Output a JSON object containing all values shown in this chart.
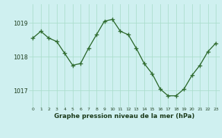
{
  "x": [
    0,
    1,
    2,
    3,
    4,
    5,
    6,
    7,
    8,
    9,
    10,
    11,
    12,
    13,
    14,
    15,
    16,
    17,
    18,
    19,
    20,
    21,
    22,
    23
  ],
  "y": [
    1018.55,
    1018.75,
    1018.55,
    1018.45,
    1018.1,
    1017.75,
    1017.8,
    1018.25,
    1018.65,
    1019.05,
    1019.1,
    1018.75,
    1018.65,
    1018.25,
    1017.8,
    1017.5,
    1017.05,
    1016.85,
    1016.85,
    1017.05,
    1017.45,
    1017.75,
    1018.15,
    1018.4
  ],
  "line_color": "#2d6a2d",
  "marker": "+",
  "marker_color": "#2d6a2d",
  "bg_color": "#cff0f0",
  "grid_color": "#aaddcc",
  "xlabel": "Graphe pression niveau de la mer (hPa)",
  "xlabel_color": "#1a3a1a",
  "tick_color": "#1a3a1a",
  "yticks": [
    1017,
    1018,
    1019
  ],
  "ylim": [
    1016.5,
    1019.55
  ],
  "xlim": [
    -0.5,
    23.5
  ],
  "linewidth": 1.0,
  "markersize": 4
}
